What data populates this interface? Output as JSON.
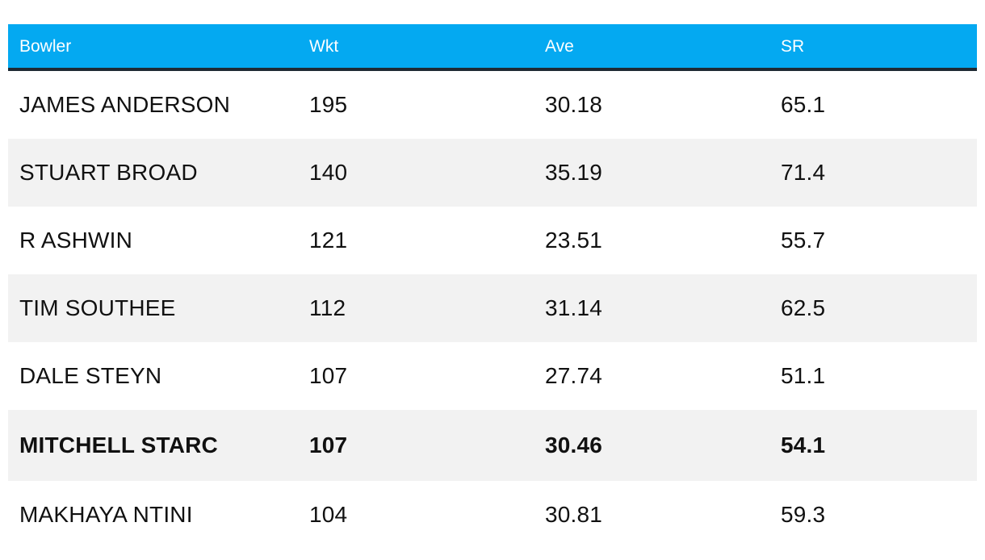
{
  "table": {
    "headers": [
      "Bowler",
      "Wkt",
      "Ave",
      "SR"
    ],
    "rows": [
      {
        "bowler": "JAMES ANDERSON",
        "wkt": "195",
        "ave": "30.18",
        "sr": "65.1"
      },
      {
        "bowler": "STUART BROAD",
        "wkt": "140",
        "ave": "35.19",
        "sr": "71.4"
      },
      {
        "bowler": "R ASHWIN",
        "wkt": "121",
        "ave": "23.51",
        "sr": "55.7"
      },
      {
        "bowler": "TIM SOUTHEE",
        "wkt": "112",
        "ave": "31.14",
        "sr": "62.5"
      },
      {
        "bowler": "DALE STEYN",
        "wkt": "107",
        "ave": "27.74",
        "sr": "51.1"
      },
      {
        "bowler": "MITCHELL STARC",
        "wkt": "107",
        "ave": "30.46",
        "sr": "54.1"
      },
      {
        "bowler": "MAKHAYA NTINI",
        "wkt": "104",
        "ave": "30.81",
        "sr": "59.3"
      }
    ],
    "highlighted_row": "MITCHELL STARC"
  },
  "colors": {
    "header_background": "#04a9f1",
    "header_border": "#1f2a33",
    "alt_row_background": "#f2f2f2"
  }
}
